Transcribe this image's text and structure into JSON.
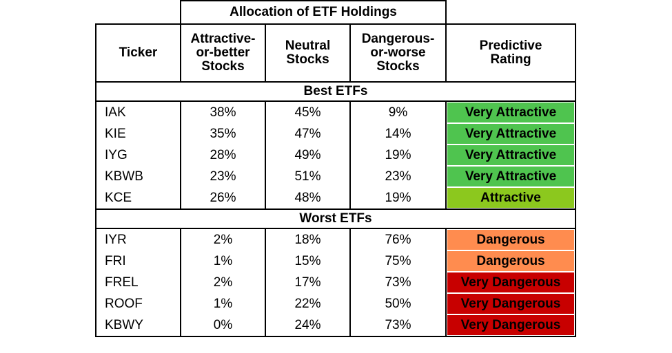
{
  "table": {
    "group_header": "Allocation of ETF Holdings",
    "columns": [
      "Ticker",
      [
        "Attractive-",
        "or-better",
        "Stocks"
      ],
      [
        "Neutral",
        "Stocks"
      ],
      [
        "Dangerous-",
        "or-worse",
        "Stocks"
      ],
      [
        "Predictive",
        "Rating"
      ]
    ],
    "sections": [
      {
        "title": "Best ETFs",
        "rows": [
          {
            "ticker": "IAK",
            "attractive": "38%",
            "neutral": "45%",
            "dangerous": "9%",
            "rating": "Very Attractive",
            "color": "#4fc44f"
          },
          {
            "ticker": "KIE",
            "attractive": "35%",
            "neutral": "47%",
            "dangerous": "14%",
            "rating": "Very Attractive",
            "color": "#4fc44f"
          },
          {
            "ticker": "IYG",
            "attractive": "28%",
            "neutral": "49%",
            "dangerous": "19%",
            "rating": "Very Attractive",
            "color": "#4fc44f"
          },
          {
            "ticker": "KBWB",
            "attractive": "23%",
            "neutral": "51%",
            "dangerous": "23%",
            "rating": "Very Attractive",
            "color": "#4fc44f"
          },
          {
            "ticker": "KCE",
            "attractive": "26%",
            "neutral": "48%",
            "dangerous": "19%",
            "rating": "Attractive",
            "color": "#8cc81e"
          }
        ]
      },
      {
        "title": "Worst ETFs",
        "rows": [
          {
            "ticker": "IYR",
            "attractive": "2%",
            "neutral": "18%",
            "dangerous": "76%",
            "rating": "Dangerous",
            "color": "#ff8c4f"
          },
          {
            "ticker": "FRI",
            "attractive": "1%",
            "neutral": "15%",
            "dangerous": "75%",
            "rating": "Dangerous",
            "color": "#ff8c4f"
          },
          {
            "ticker": "FREL",
            "attractive": "2%",
            "neutral": "17%",
            "dangerous": "73%",
            "rating": "Very Dangerous",
            "color": "#c80000"
          },
          {
            "ticker": "ROOF",
            "attractive": "1%",
            "neutral": "22%",
            "dangerous": "50%",
            "rating": "Very Dangerous",
            "color": "#c80000"
          },
          {
            "ticker": "KBWY",
            "attractive": "0%",
            "neutral": "24%",
            "dangerous": "73%",
            "rating": "Very Dangerous",
            "color": "#c80000"
          }
        ]
      }
    ]
  }
}
